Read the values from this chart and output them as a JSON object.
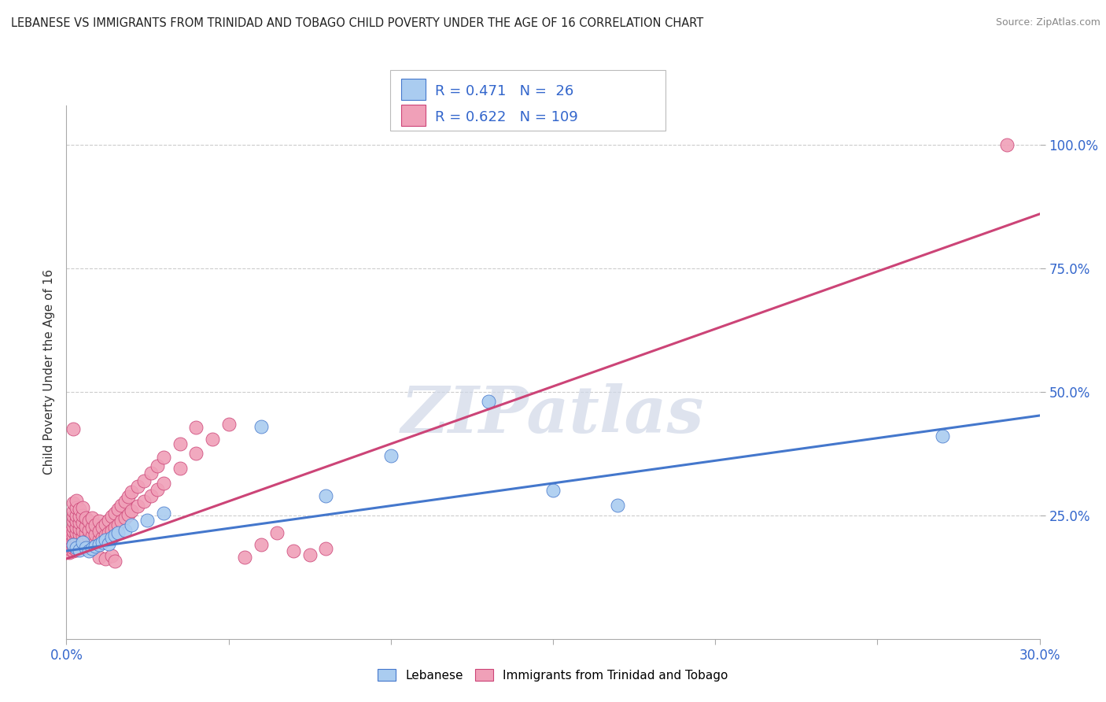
{
  "title": "LEBANESE VS IMMIGRANTS FROM TRINIDAD AND TOBAGO CHILD POVERTY UNDER THE AGE OF 16 CORRELATION CHART",
  "source": "Source: ZipAtlas.com",
  "ylabel": "Child Poverty Under the Age of 16",
  "xlim": [
    0.0,
    0.3
  ],
  "ylim": [
    0.0,
    1.08
  ],
  "legend_label1": "Lebanese",
  "legend_label2": "Immigrants from Trinidad and Tobago",
  "R1": 0.471,
  "N1": 26,
  "R2": 0.622,
  "N2": 109,
  "color_blue": "#aaccf0",
  "color_pink": "#f0a0b8",
  "color_blue_line": "#4477cc",
  "color_pink_line": "#cc4477",
  "color_blue_text": "#3366cc",
  "watermark": "ZIPatlas",
  "background_color": "#ffffff",
  "grid_color": "#cccccc",
  "blue_scatter": [
    [
      0.002,
      0.19
    ],
    [
      0.003,
      0.185
    ],
    [
      0.004,
      0.18
    ],
    [
      0.005,
      0.195
    ],
    [
      0.006,
      0.185
    ],
    [
      0.007,
      0.178
    ],
    [
      0.008,
      0.182
    ],
    [
      0.009,
      0.188
    ],
    [
      0.01,
      0.19
    ],
    [
      0.011,
      0.195
    ],
    [
      0.012,
      0.2
    ],
    [
      0.013,
      0.192
    ],
    [
      0.014,
      0.205
    ],
    [
      0.015,
      0.21
    ],
    [
      0.016,
      0.215
    ],
    [
      0.018,
      0.22
    ],
    [
      0.02,
      0.23
    ],
    [
      0.025,
      0.24
    ],
    [
      0.03,
      0.255
    ],
    [
      0.06,
      0.43
    ],
    [
      0.08,
      0.29
    ],
    [
      0.1,
      0.37
    ],
    [
      0.13,
      0.48
    ],
    [
      0.15,
      0.3
    ],
    [
      0.17,
      0.27
    ],
    [
      0.27,
      0.41
    ]
  ],
  "pink_scatter": [
    [
      0.001,
      0.175
    ],
    [
      0.001,
      0.182
    ],
    [
      0.001,
      0.19
    ],
    [
      0.001,
      0.198
    ],
    [
      0.001,
      0.205
    ],
    [
      0.001,
      0.215
    ],
    [
      0.002,
      0.178
    ],
    [
      0.002,
      0.185
    ],
    [
      0.002,
      0.192
    ],
    [
      0.002,
      0.2
    ],
    [
      0.002,
      0.208
    ],
    [
      0.002,
      0.218
    ],
    [
      0.002,
      0.228
    ],
    [
      0.002,
      0.238
    ],
    [
      0.002,
      0.248
    ],
    [
      0.002,
      0.26
    ],
    [
      0.002,
      0.275
    ],
    [
      0.002,
      0.425
    ],
    [
      0.003,
      0.18
    ],
    [
      0.003,
      0.188
    ],
    [
      0.003,
      0.195
    ],
    [
      0.003,
      0.205
    ],
    [
      0.003,
      0.215
    ],
    [
      0.003,
      0.225
    ],
    [
      0.003,
      0.238
    ],
    [
      0.003,
      0.25
    ],
    [
      0.003,
      0.265
    ],
    [
      0.003,
      0.28
    ],
    [
      0.004,
      0.182
    ],
    [
      0.004,
      0.192
    ],
    [
      0.004,
      0.202
    ],
    [
      0.004,
      0.212
    ],
    [
      0.004,
      0.222
    ],
    [
      0.004,
      0.235
    ],
    [
      0.004,
      0.248
    ],
    [
      0.004,
      0.262
    ],
    [
      0.005,
      0.185
    ],
    [
      0.005,
      0.195
    ],
    [
      0.005,
      0.208
    ],
    [
      0.005,
      0.22
    ],
    [
      0.005,
      0.235
    ],
    [
      0.005,
      0.25
    ],
    [
      0.005,
      0.265
    ],
    [
      0.006,
      0.188
    ],
    [
      0.006,
      0.2
    ],
    [
      0.006,
      0.214
    ],
    [
      0.006,
      0.228
    ],
    [
      0.006,
      0.245
    ],
    [
      0.007,
      0.19
    ],
    [
      0.007,
      0.205
    ],
    [
      0.007,
      0.22
    ],
    [
      0.007,
      0.238
    ],
    [
      0.008,
      0.192
    ],
    [
      0.008,
      0.208
    ],
    [
      0.008,
      0.225
    ],
    [
      0.008,
      0.245
    ],
    [
      0.009,
      0.195
    ],
    [
      0.009,
      0.212
    ],
    [
      0.009,
      0.23
    ],
    [
      0.01,
      0.2
    ],
    [
      0.01,
      0.218
    ],
    [
      0.01,
      0.238
    ],
    [
      0.011,
      0.205
    ],
    [
      0.011,
      0.225
    ],
    [
      0.012,
      0.21
    ],
    [
      0.012,
      0.232
    ],
    [
      0.013,
      0.215
    ],
    [
      0.013,
      0.24
    ],
    [
      0.014,
      0.22
    ],
    [
      0.014,
      0.248
    ],
    [
      0.015,
      0.225
    ],
    [
      0.015,
      0.255
    ],
    [
      0.016,
      0.23
    ],
    [
      0.016,
      0.262
    ],
    [
      0.017,
      0.238
    ],
    [
      0.017,
      0.27
    ],
    [
      0.018,
      0.245
    ],
    [
      0.018,
      0.278
    ],
    [
      0.019,
      0.252
    ],
    [
      0.019,
      0.288
    ],
    [
      0.02,
      0.26
    ],
    [
      0.02,
      0.298
    ],
    [
      0.022,
      0.268
    ],
    [
      0.022,
      0.308
    ],
    [
      0.024,
      0.278
    ],
    [
      0.024,
      0.32
    ],
    [
      0.026,
      0.29
    ],
    [
      0.026,
      0.335
    ],
    [
      0.028,
      0.302
    ],
    [
      0.028,
      0.35
    ],
    [
      0.03,
      0.315
    ],
    [
      0.03,
      0.368
    ],
    [
      0.035,
      0.345
    ],
    [
      0.035,
      0.395
    ],
    [
      0.04,
      0.375
    ],
    [
      0.04,
      0.428
    ],
    [
      0.045,
      0.405
    ],
    [
      0.05,
      0.435
    ],
    [
      0.055,
      0.165
    ],
    [
      0.06,
      0.19
    ],
    [
      0.065,
      0.215
    ],
    [
      0.07,
      0.178
    ],
    [
      0.075,
      0.17
    ],
    [
      0.08,
      0.182
    ],
    [
      0.01,
      0.165
    ],
    [
      0.012,
      0.162
    ],
    [
      0.014,
      0.168
    ],
    [
      0.015,
      0.158
    ],
    [
      0.29,
      1.0
    ]
  ],
  "blue_line_x": [
    0.0,
    0.3
  ],
  "blue_line_y": [
    0.178,
    0.452
  ],
  "pink_line_x": [
    0.0,
    0.3
  ],
  "pink_line_y": [
    0.162,
    0.86
  ]
}
